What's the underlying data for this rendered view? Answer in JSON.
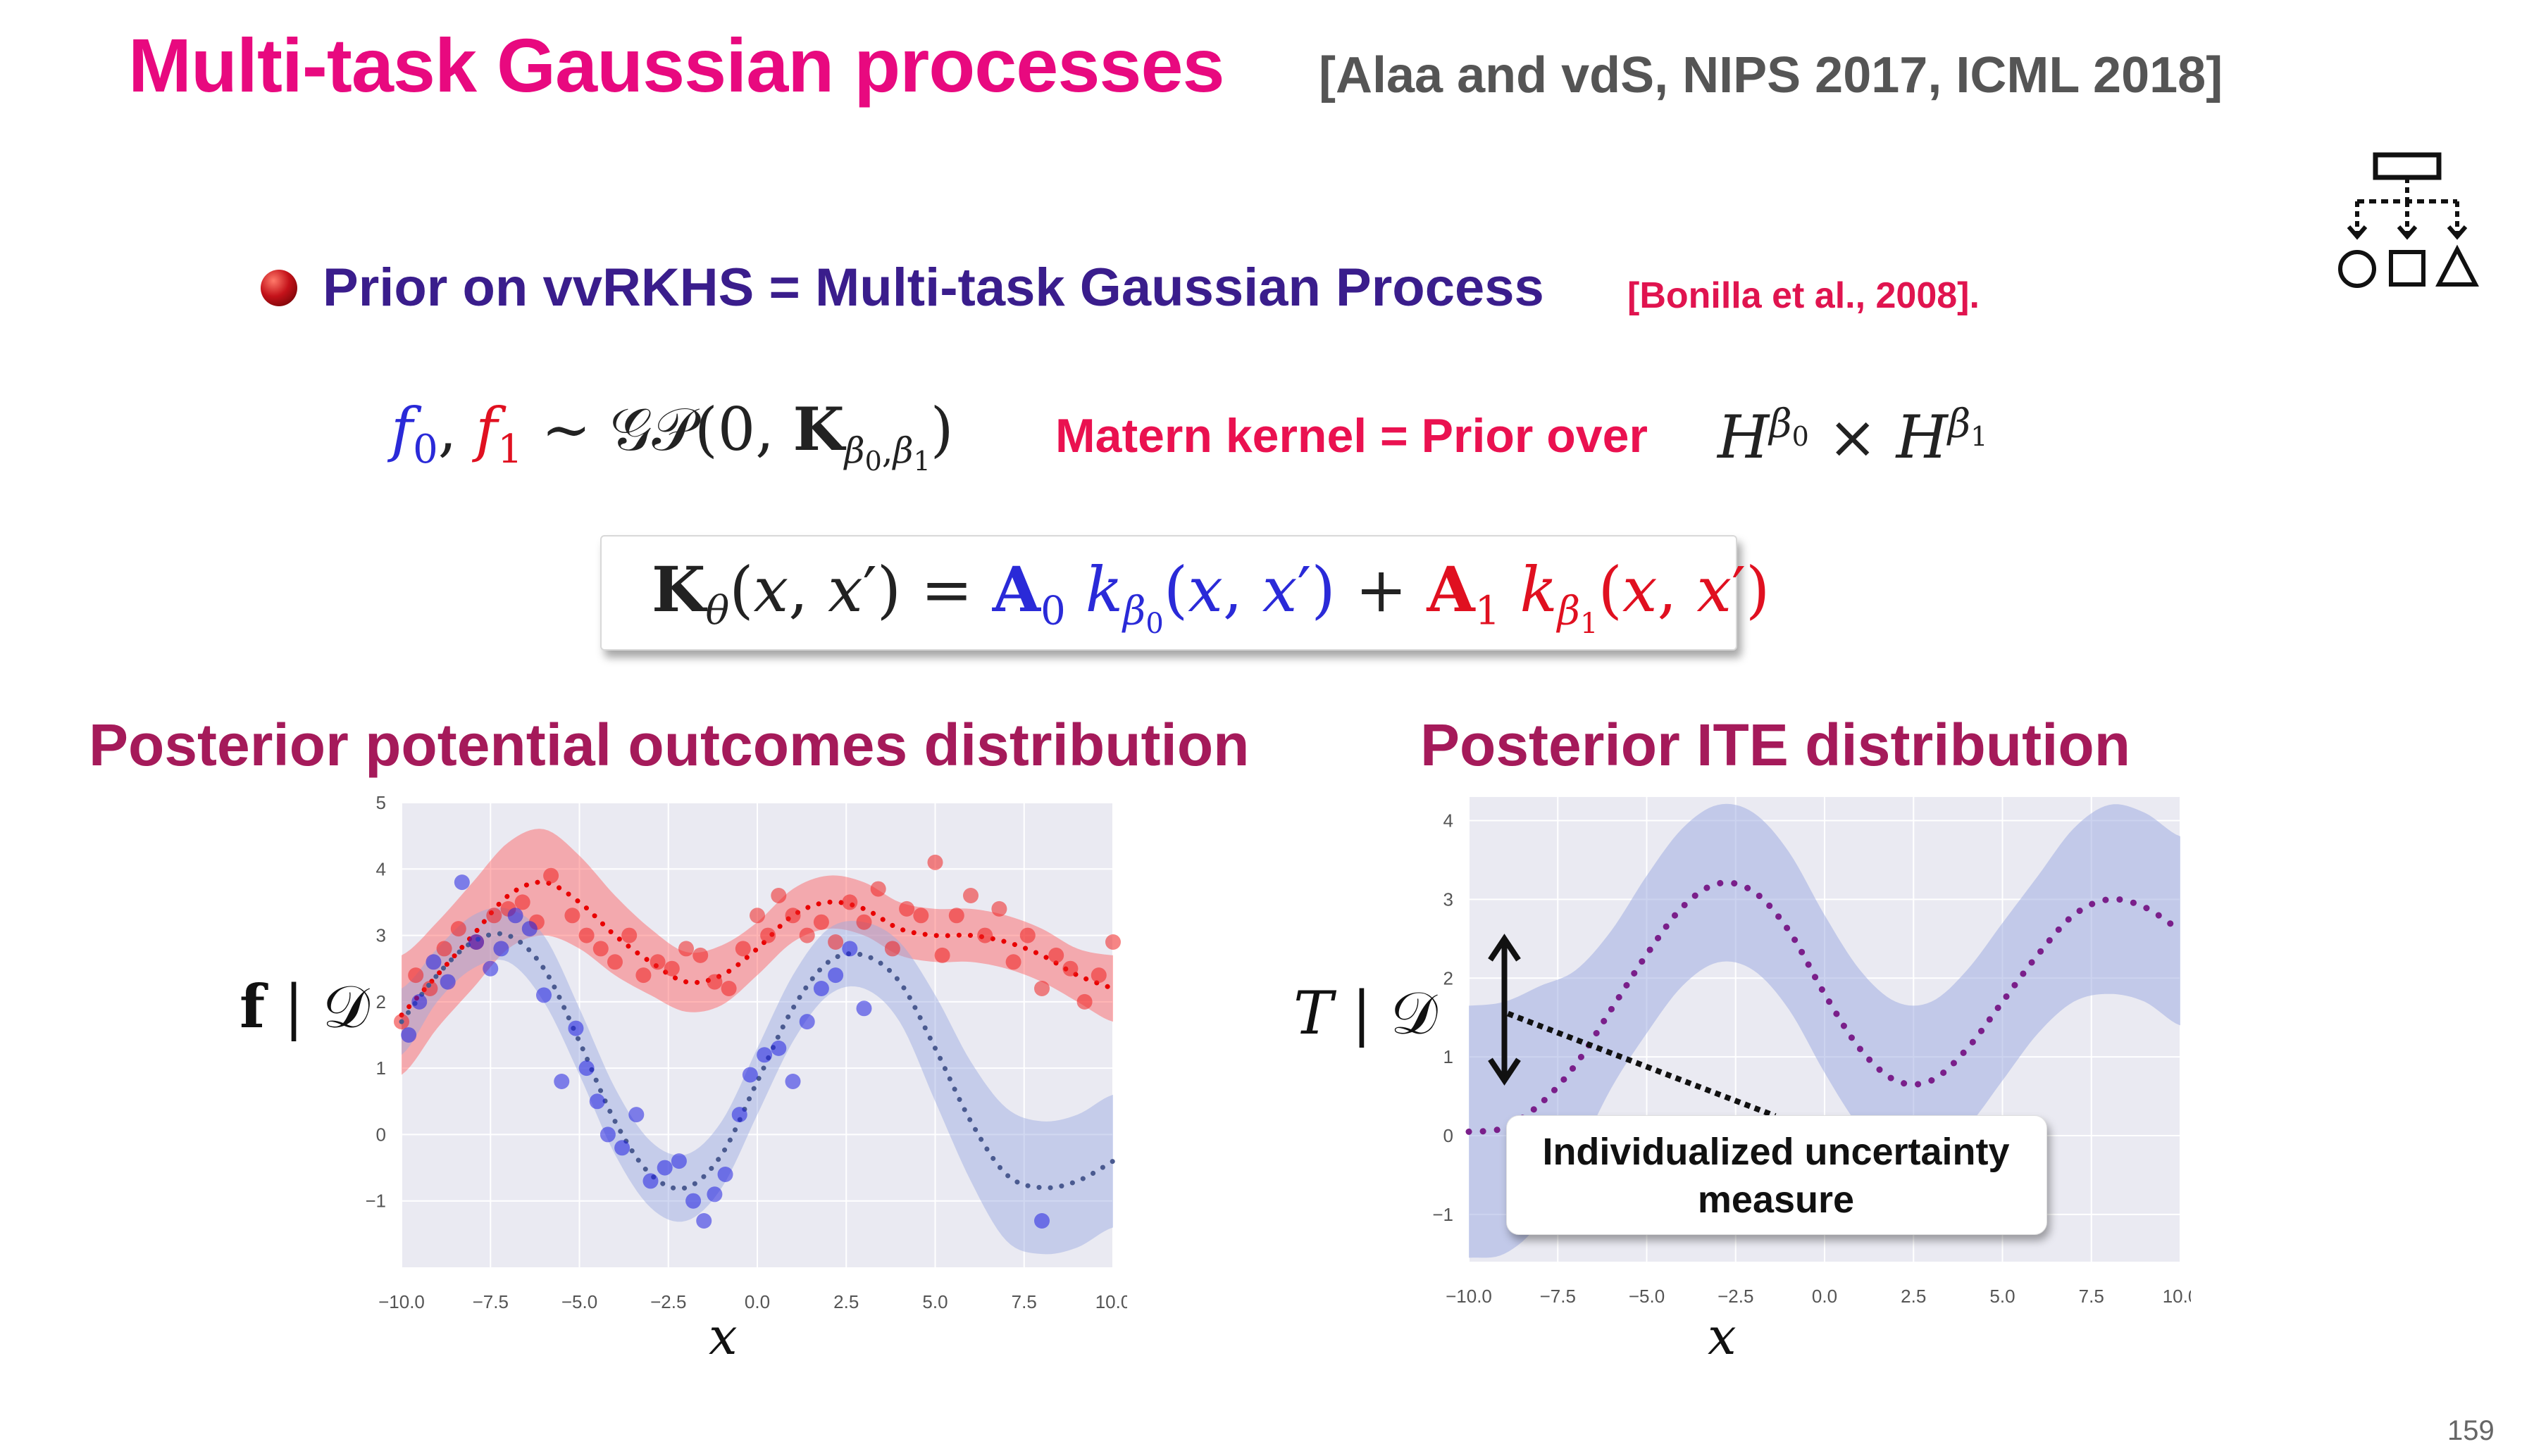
{
  "slide": {
    "title": "Multi-task Gaussian processes",
    "citation": "[Alaa and vdS, NIPS 2017, ICML 2018]",
    "bullet_text": "Prior on vvRKHS = Multi-task Gaussian Process",
    "bullet_citation": "[Bonilla et al., 2008].",
    "matern_label": "Matern kernel = Prior over",
    "page_number": "159"
  },
  "icons": {
    "bullet": "red-sphere-bullet-icon",
    "hierarchy": "hierarchy-diagram-icon"
  },
  "colors": {
    "title": "#e8097f",
    "bullet_text": "#3a1d8c",
    "accent_red": "#e01020",
    "accent_blue": "#2a2ad8",
    "section_heading": "#a51a5a",
    "ite_curve": "#7a1f8a"
  },
  "chart_data": [
    {
      "type": "scatter",
      "title": "Posterior potential outcomes distribution",
      "xlabel": "x",
      "ylabel": "f | D",
      "xlim": [
        -10,
        10
      ],
      "ylim": [
        -2,
        5
      ],
      "x_ticks": [
        "−10.0",
        "−7.5",
        "−5.0",
        "−2.5",
        "0.0",
        "2.5",
        "5.0",
        "7.5",
        "10.0"
      ],
      "y_ticks": [
        "5",
        "4",
        "3",
        "2",
        "1",
        "0",
        "−1"
      ],
      "grid": true,
      "series": [
        {
          "color": "#e83a3a",
          "mean_x": [
            -10,
            -9,
            -8,
            -7,
            -6,
            -5,
            -4,
            -3,
            -2,
            -1,
            0,
            1,
            2,
            3,
            4,
            5,
            6,
            7,
            8,
            9,
            10
          ],
          "mean_y": [
            1.8,
            2.4,
            3.0,
            3.6,
            3.8,
            3.5,
            3.0,
            2.6,
            2.3,
            2.4,
            2.8,
            3.3,
            3.5,
            3.4,
            3.1,
            3.0,
            3.0,
            2.9,
            2.7,
            2.4,
            2.2
          ],
          "band_halfwidth": [
            0.9,
            0.8,
            0.8,
            0.8,
            0.8,
            0.7,
            0.6,
            0.5,
            0.45,
            0.45,
            0.4,
            0.4,
            0.4,
            0.4,
            0.4,
            0.4,
            0.4,
            0.4,
            0.4,
            0.4,
            0.5
          ],
          "points_x": [
            -10.0,
            -9.6,
            -9.2,
            -8.8,
            -8.4,
            -7.9,
            -7.4,
            -7.0,
            -6.6,
            -6.2,
            -5.8,
            -5.2,
            -4.8,
            -4.4,
            -4.0,
            -3.6,
            -3.2,
            -2.8,
            -2.4,
            -2.0,
            -1.6,
            -1.2,
            -0.8,
            -0.4,
            0.0,
            0.3,
            0.6,
            1.0,
            1.4,
            1.8,
            2.2,
            2.6,
            3.0,
            3.4,
            3.8,
            4.2,
            4.6,
            5.0,
            5.2,
            5.6,
            6.0,
            6.4,
            6.8,
            7.2,
            7.6,
            8.0,
            8.4,
            8.8,
            9.2,
            9.6,
            10.0
          ],
          "points_y": [
            1.7,
            2.4,
            2.2,
            2.8,
            3.1,
            2.9,
            3.3,
            3.4,
            3.5,
            3.2,
            3.9,
            3.3,
            3.0,
            2.8,
            2.6,
            3.0,
            2.4,
            2.6,
            2.5,
            2.8,
            2.7,
            2.3,
            2.2,
            2.8,
            3.3,
            3.0,
            3.6,
            3.3,
            3.0,
            3.2,
            2.9,
            3.5,
            3.2,
            3.7,
            2.8,
            3.4,
            3.3,
            4.1,
            2.7,
            3.3,
            3.6,
            3.0,
            3.4,
            2.6,
            3.0,
            2.2,
            2.7,
            2.5,
            2.0,
            2.4,
            2.9
          ]
        },
        {
          "color": "#4a4ae8",
          "mean_x": [
            -10,
            -9,
            -8,
            -7,
            -6,
            -5,
            -4,
            -3,
            -2,
            -1,
            0,
            1,
            2,
            3,
            4,
            5,
            6,
            7,
            8,
            9,
            10
          ],
          "mean_y": [
            1.7,
            2.4,
            2.9,
            3.0,
            2.5,
            1.4,
            0.2,
            -0.6,
            -0.8,
            -0.3,
            0.8,
            1.9,
            2.6,
            2.7,
            2.3,
            1.3,
            0.2,
            -0.6,
            -0.8,
            -0.7,
            -0.4
          ],
          "band_halfwidth": [
            0.5,
            0.4,
            0.4,
            0.4,
            0.5,
            0.5,
            0.5,
            0.5,
            0.5,
            0.5,
            0.5,
            0.5,
            0.5,
            0.5,
            0.6,
            0.8,
            0.9,
            1.0,
            1.0,
            1.0,
            1.0
          ],
          "points_x": [
            -9.8,
            -9.5,
            -9.1,
            -8.7,
            -8.3,
            -7.9,
            -7.5,
            -7.2,
            -6.8,
            -6.4,
            -6.0,
            -5.5,
            -5.1,
            -4.8,
            -4.5,
            -4.2,
            -3.8,
            -3.4,
            -3.0,
            -2.6,
            -2.2,
            -1.8,
            -1.5,
            -1.2,
            -0.9,
            -0.5,
            -0.2,
            0.2,
            0.6,
            1.0,
            1.4,
            1.8,
            2.2,
            2.6,
            3.0,
            8.0
          ],
          "points_y": [
            1.5,
            2.0,
            2.6,
            2.3,
            3.8,
            2.9,
            2.5,
            2.8,
            3.3,
            3.1,
            2.1,
            0.8,
            1.6,
            1.0,
            0.5,
            0.0,
            -0.2,
            0.3,
            -0.7,
            -0.5,
            -0.4,
            -1.0,
            -1.3,
            -0.9,
            -0.6,
            0.3,
            0.9,
            1.2,
            1.3,
            0.8,
            1.7,
            2.2,
            2.4,
            2.8,
            1.9,
            -1.3
          ]
        }
      ]
    },
    {
      "type": "area",
      "title": "Posterior ITE distribution",
      "xlabel": "x",
      "ylabel": "T | D",
      "xlim": [
        -10,
        10
      ],
      "ylim": [
        -1.6,
        4.3
      ],
      "x_ticks": [
        "−10.0",
        "−7.5",
        "−5.0",
        "−2.5",
        "0.0",
        "2.5",
        "5.0",
        "7.5",
        "10.0"
      ],
      "y_ticks": [
        "4",
        "3",
        "2",
        "1",
        "0",
        "−1"
      ],
      "grid": true,
      "annotation": "Individualized uncertainty measure",
      "series": [
        {
          "color": "#7a1f8a",
          "mean_x": [
            -10,
            -9,
            -8,
            -7,
            -6,
            -5,
            -4,
            -3,
            -2,
            -1,
            0,
            1,
            2,
            3,
            4,
            5,
            6,
            7,
            8,
            9,
            10
          ],
          "mean_y": [
            0.05,
            0.1,
            0.4,
            0.9,
            1.6,
            2.3,
            2.9,
            3.2,
            3.1,
            2.6,
            1.8,
            1.1,
            0.7,
            0.7,
            1.1,
            1.7,
            2.3,
            2.8,
            3.0,
            2.9,
            2.6
          ],
          "band_halfwidth": [
            1.6,
            1.6,
            1.5,
            1.2,
            1.0,
            1.0,
            1.0,
            1.0,
            1.0,
            1.0,
            1.0,
            1.0,
            1.0,
            1.0,
            1.0,
            1.0,
            1.0,
            1.1,
            1.2,
            1.2,
            1.2
          ]
        }
      ]
    }
  ]
}
